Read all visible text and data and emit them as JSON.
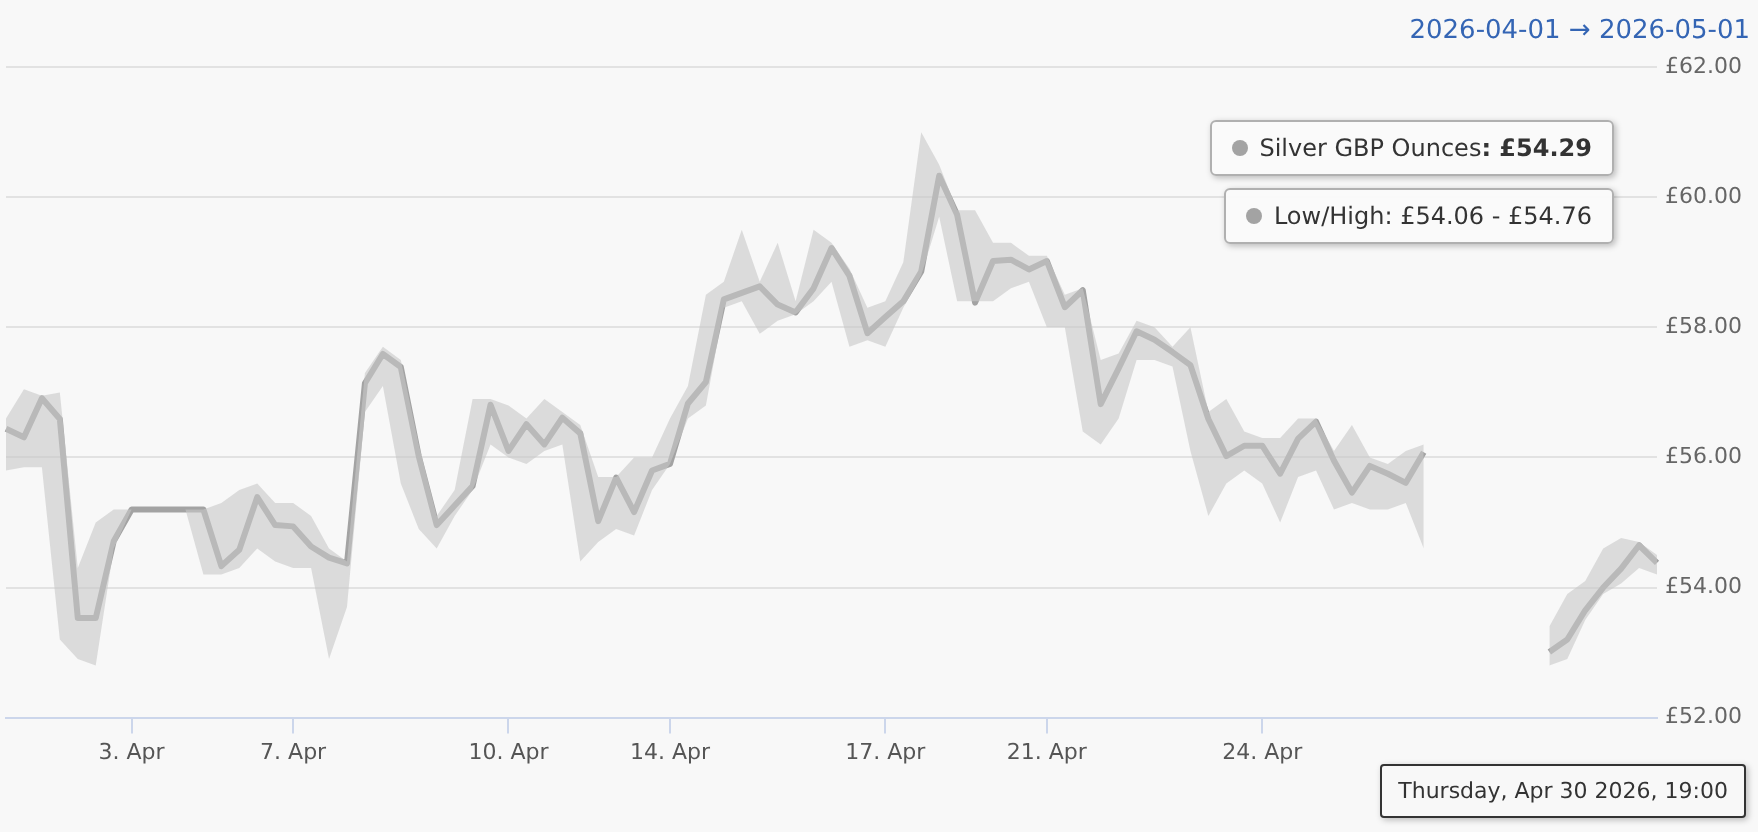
{
  "chart_data": {
    "type": "line",
    "title": "2026-04-01 → 2026-05-01",
    "categories": [
      null,
      null,
      null,
      null,
      null,
      null,
      null,
      "3. Apr",
      null,
      null,
      null,
      null,
      null,
      null,
      null,
      null,
      "7. Apr",
      null,
      null,
      null,
      null,
      null,
      null,
      null,
      null,
      null,
      null,
      null,
      "10. Apr",
      null,
      null,
      null,
      null,
      null,
      null,
      null,
      null,
      "14. Apr",
      null,
      null,
      null,
      null,
      null,
      null,
      null,
      null,
      null,
      null,
      null,
      "17. Apr",
      null,
      null,
      null,
      null,
      null,
      null,
      null,
      null,
      "21. Apr",
      null,
      null,
      null,
      null,
      null,
      null,
      null,
      null,
      null,
      null,
      null,
      "24. Apr",
      null,
      null,
      null,
      null,
      null,
      null,
      null,
      null,
      null,
      null,
      null,
      null,
      null,
      null,
      null,
      null,
      null,
      null,
      null,
      null,
      null,
      null
    ],
    "series": [
      {
        "name": "Silver GBP Ounces",
        "color": "#a3a3a3",
        "values": [
          56.44,
          56.31,
          56.91,
          56.59,
          53.53,
          53.53,
          54.71,
          55.2,
          55.2,
          55.2,
          55.2,
          55.2,
          54.33,
          54.58,
          55.39,
          54.96,
          54.94,
          54.63,
          54.46,
          54.37,
          57.14,
          57.59,
          57.39,
          56.02,
          54.96,
          55.26,
          55.56,
          56.81,
          56.1,
          56.51,
          56.2,
          56.61,
          56.37,
          55.02,
          55.69,
          55.16,
          55.8,
          55.9,
          56.83,
          57.16,
          58.43,
          58.53,
          58.63,
          58.35,
          58.23,
          58.6,
          59.22,
          58.79,
          57.91,
          58.16,
          58.4,
          58.86,
          60.33,
          59.73,
          58.38,
          59.02,
          59.04,
          58.89,
          59.02,
          58.31,
          58.57,
          56.82,
          57.37,
          57.94,
          57.81,
          57.62,
          57.42,
          56.59,
          56.02,
          56.18,
          56.18,
          55.75,
          56.29,
          56.55,
          55.95,
          55.46,
          55.87,
          55.75,
          55.61,
          56.08,
          null,
          null,
          null,
          null,
          null,
          null,
          53.01,
          53.2,
          53.65,
          54.0,
          54.29,
          54.65,
          54.38
        ],
        "lower": [
          55.8,
          55.85,
          55.85,
          53.2,
          52.9,
          52.8,
          54.6,
          55.2,
          55.2,
          55.2,
          55.2,
          54.2,
          54.2,
          54.3,
          54.6,
          54.4,
          54.3,
          54.3,
          52.9,
          53.7,
          56.7,
          57.1,
          55.6,
          54.9,
          54.6,
          55.1,
          55.5,
          56.2,
          56.0,
          55.9,
          56.1,
          56.2,
          54.4,
          54.7,
          54.9,
          54.8,
          55.5,
          55.9,
          56.6,
          56.8,
          58.3,
          58.4,
          57.9,
          58.1,
          58.2,
          58.4,
          58.7,
          57.7,
          57.8,
          57.7,
          58.3,
          58.8,
          59.7,
          58.4,
          58.4,
          58.4,
          58.6,
          58.7,
          58.0,
          58.0,
          56.4,
          56.2,
          56.6,
          57.5,
          57.5,
          57.4,
          56.1,
          55.1,
          55.6,
          55.8,
          55.6,
          55.0,
          55.7,
          55.8,
          55.2,
          55.3,
          55.2,
          55.2,
          55.3,
          54.6,
          null,
          null,
          null,
          null,
          null,
          null,
          52.8,
          52.9,
          53.5,
          53.9,
          54.06,
          54.3,
          54.2
        ],
        "upper": [
          56.6,
          57.05,
          56.95,
          57.0,
          54.3,
          55.0,
          55.2,
          55.2,
          55.2,
          55.2,
          55.2,
          55.2,
          55.3,
          55.5,
          55.6,
          55.3,
          55.3,
          55.1,
          54.6,
          54.4,
          57.3,
          57.7,
          57.5,
          56.2,
          55.1,
          55.5,
          56.9,
          56.9,
          56.8,
          56.6,
          56.9,
          56.7,
          56.5,
          55.7,
          55.7,
          56.0,
          56.0,
          56.6,
          57.1,
          58.5,
          58.7,
          59.5,
          58.7,
          59.3,
          58.4,
          59.5,
          59.3,
          58.9,
          58.3,
          58.4,
          59.0,
          61.0,
          60.5,
          59.8,
          59.8,
          59.3,
          59.3,
          59.1,
          59.1,
          58.5,
          58.6,
          57.5,
          57.6,
          58.1,
          58.0,
          57.7,
          58.0,
          56.7,
          56.9,
          56.4,
          56.3,
          56.3,
          56.6,
          56.6,
          56.1,
          56.5,
          56.0,
          55.9,
          56.1,
          56.2,
          null,
          null,
          null,
          null,
          null,
          null,
          53.4,
          53.9,
          54.1,
          54.6,
          54.76,
          54.7,
          54.5
        ]
      }
    ],
    "ylim": [
      52,
      62
    ],
    "yticks": [
      {
        "value": 52,
        "label": "£52.00"
      },
      {
        "value": 54,
        "label": "£54.00"
      },
      {
        "value": 56,
        "label": "£56.00"
      },
      {
        "value": 58,
        "label": "£58.00"
      },
      {
        "value": 60,
        "label": "£60.00"
      },
      {
        "value": 62,
        "label": "£62.00"
      }
    ],
    "grid": "y",
    "legend": "top right",
    "marker": "none",
    "line_style": "solid",
    "annotations": [
      ": £54.29",
      "Low/High: £54.06 - £54.76",
      "Thursday, Apr 30 2026, 19:00"
    ]
  }
}
